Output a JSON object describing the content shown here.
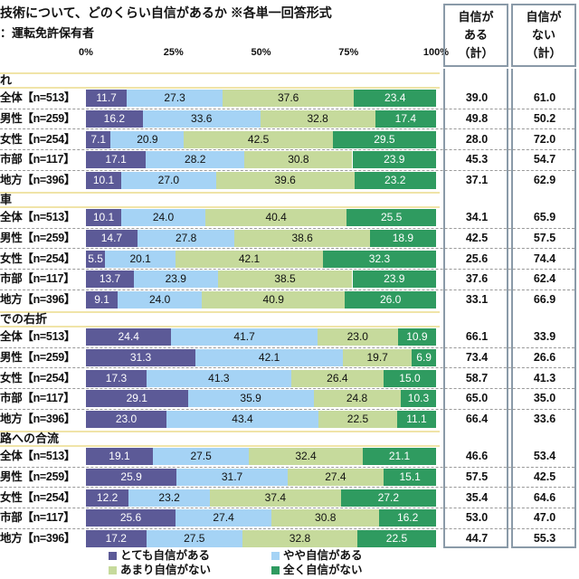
{
  "chart_data": {
    "type": "bar",
    "orientation": "horizontal-stacked-100",
    "title": "技術について、どのくらい自信があるか ※各単一回答形式",
    "subtitle": "：運転免許保有者",
    "x_ticks": [
      "0%",
      "25%",
      "50%",
      "75%",
      "100%"
    ],
    "xlim": [
      0,
      100
    ],
    "column_headers": [
      "自信が\nある\n（計）",
      "自信が\nない\n（計）"
    ],
    "legend": {
      "placement": "bottom",
      "entries": [
        "とても自信がある",
        "やや自信がある",
        "あまり自信がない",
        "全く自信がない"
      ]
    },
    "colors": [
      "#5c5a97",
      "#a5d3f5",
      "#c6da9c",
      "#2f9b60"
    ],
    "sections": [
      {
        "label": "れ",
        "rows": [
          {
            "label": "全体【n=513】",
            "values": [
              11.7,
              27.3,
              37.6,
              23.4
            ],
            "totals": [
              "39.0",
              "61.0"
            ]
          },
          {
            "label": "男性【n=259】",
            "values": [
              16.2,
              33.6,
              32.8,
              17.4
            ],
            "totals": [
              "49.8",
              "50.2"
            ]
          },
          {
            "label": "女性【n=254】",
            "values": [
              7.1,
              20.9,
              42.5,
              29.5
            ],
            "totals": [
              "28.0",
              "72.0"
            ]
          },
          {
            "label": "市部【n=117】",
            "values": [
              17.1,
              28.2,
              30.8,
              23.9
            ],
            "totals": [
              "45.3",
              "54.7"
            ]
          },
          {
            "label": "地方【n=396】",
            "values": [
              10.1,
              27.0,
              39.6,
              23.2
            ],
            "totals": [
              "37.1",
              "62.9"
            ]
          }
        ]
      },
      {
        "label": "車",
        "rows": [
          {
            "label": "全体【n=513】",
            "values": [
              10.1,
              24.0,
              40.4,
              25.5
            ],
            "totals": [
              "34.1",
              "65.9"
            ]
          },
          {
            "label": "男性【n=259】",
            "values": [
              14.7,
              27.8,
              38.6,
              18.9
            ],
            "totals": [
              "42.5",
              "57.5"
            ]
          },
          {
            "label": "女性【n=254】",
            "values": [
              5.5,
              20.1,
              42.1,
              32.3
            ],
            "totals": [
              "25.6",
              "74.4"
            ]
          },
          {
            "label": "市部【n=117】",
            "values": [
              13.7,
              23.9,
              38.5,
              23.9
            ],
            "totals": [
              "37.6",
              "62.4"
            ]
          },
          {
            "label": "地方【n=396】",
            "values": [
              9.1,
              24.0,
              40.9,
              26.0
            ],
            "totals": [
              "33.1",
              "66.9"
            ]
          }
        ]
      },
      {
        "label": "での右折",
        "rows": [
          {
            "label": "全体【n=513】",
            "values": [
              24.4,
              41.7,
              23.0,
              10.9
            ],
            "totals": [
              "66.1",
              "33.9"
            ]
          },
          {
            "label": "男性【n=259】",
            "values": [
              31.3,
              42.1,
              19.7,
              6.9
            ],
            "totals": [
              "73.4",
              "26.6"
            ]
          },
          {
            "label": "女性【n=254】",
            "values": [
              17.3,
              41.3,
              26.4,
              15.0
            ],
            "totals": [
              "58.7",
              "41.3"
            ]
          },
          {
            "label": "市部【n=117】",
            "values": [
              29.1,
              35.9,
              24.8,
              10.3
            ],
            "totals": [
              "65.0",
              "35.0"
            ]
          },
          {
            "label": "地方【n=396】",
            "values": [
              23.0,
              43.4,
              22.5,
              11.1
            ],
            "totals": [
              "66.4",
              "33.6"
            ]
          }
        ]
      },
      {
        "label": "路への合流",
        "rows": [
          {
            "label": "全体【n=513】",
            "values": [
              19.1,
              27.5,
              32.4,
              21.1
            ],
            "totals": [
              "46.6",
              "53.4"
            ]
          },
          {
            "label": "男性【n=259】",
            "values": [
              25.9,
              31.7,
              27.4,
              15.1
            ],
            "totals": [
              "57.5",
              "42.5"
            ]
          },
          {
            "label": "女性【n=254】",
            "values": [
              12.2,
              23.2,
              37.4,
              27.2
            ],
            "totals": [
              "35.4",
              "64.6"
            ]
          },
          {
            "label": "市部【n=117】",
            "values": [
              25.6,
              27.4,
              30.8,
              16.2
            ],
            "totals": [
              "53.0",
              "47.0"
            ]
          },
          {
            "label": "地方【n=396】",
            "values": [
              17.2,
              27.5,
              32.8,
              22.5
            ],
            "totals": [
              "44.7",
              "55.3"
            ]
          }
        ]
      }
    ]
  }
}
